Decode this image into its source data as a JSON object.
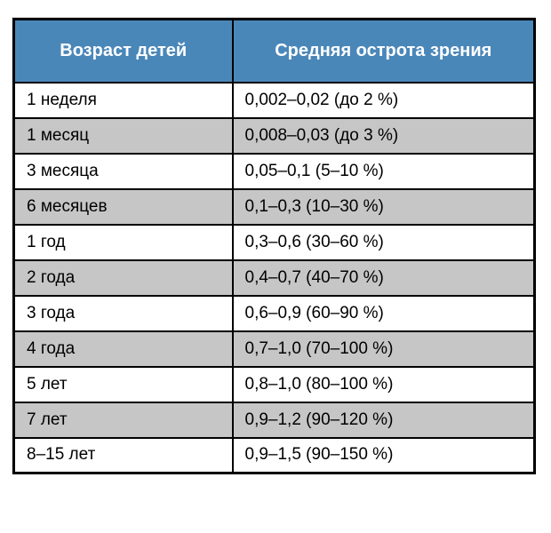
{
  "chart_data": {
    "type": "table",
    "columns": [
      "Возраст детей",
      "Средняя острота зрения"
    ],
    "rows": [
      [
        "1 неделя",
        "0,002–0,02 (до 2 %)"
      ],
      [
        "1 месяц",
        "0,008–0,03 (до 3 %)"
      ],
      [
        "3 месяца",
        "0,05–0,1 (5–10 %)"
      ],
      [
        "6 месяцев",
        "0,1–0,3 (10–30 %)"
      ],
      [
        "1 год",
        "0,3–0,6 (30–60 %)"
      ],
      [
        "2 года",
        "0,4–0,7 (40–70 %)"
      ],
      [
        "3 года",
        "0,6–0,9 (60–90 %)"
      ],
      [
        "4 года",
        "0,7–1,0 (70–100 %)"
      ],
      [
        "5 лет",
        "0,8–1,0 (80–100 %)"
      ],
      [
        "7 лет",
        "0,9–1,2 (90–120 %)"
      ],
      [
        "8–15 лет",
        "0,9–1,5 (90–150 %)"
      ]
    ],
    "layout": {
      "striped": true,
      "stripe_pattern": "odd-rows-gray",
      "header_align": "center",
      "cell_align": "left"
    }
  },
  "colors": {
    "header_bg": "#4a87b9",
    "header_text": "#ffffff",
    "row_odd_bg": "#c6c6c6",
    "row_even_bg": "#ffffff",
    "border": "#000000",
    "cell_text": "#000000"
  }
}
